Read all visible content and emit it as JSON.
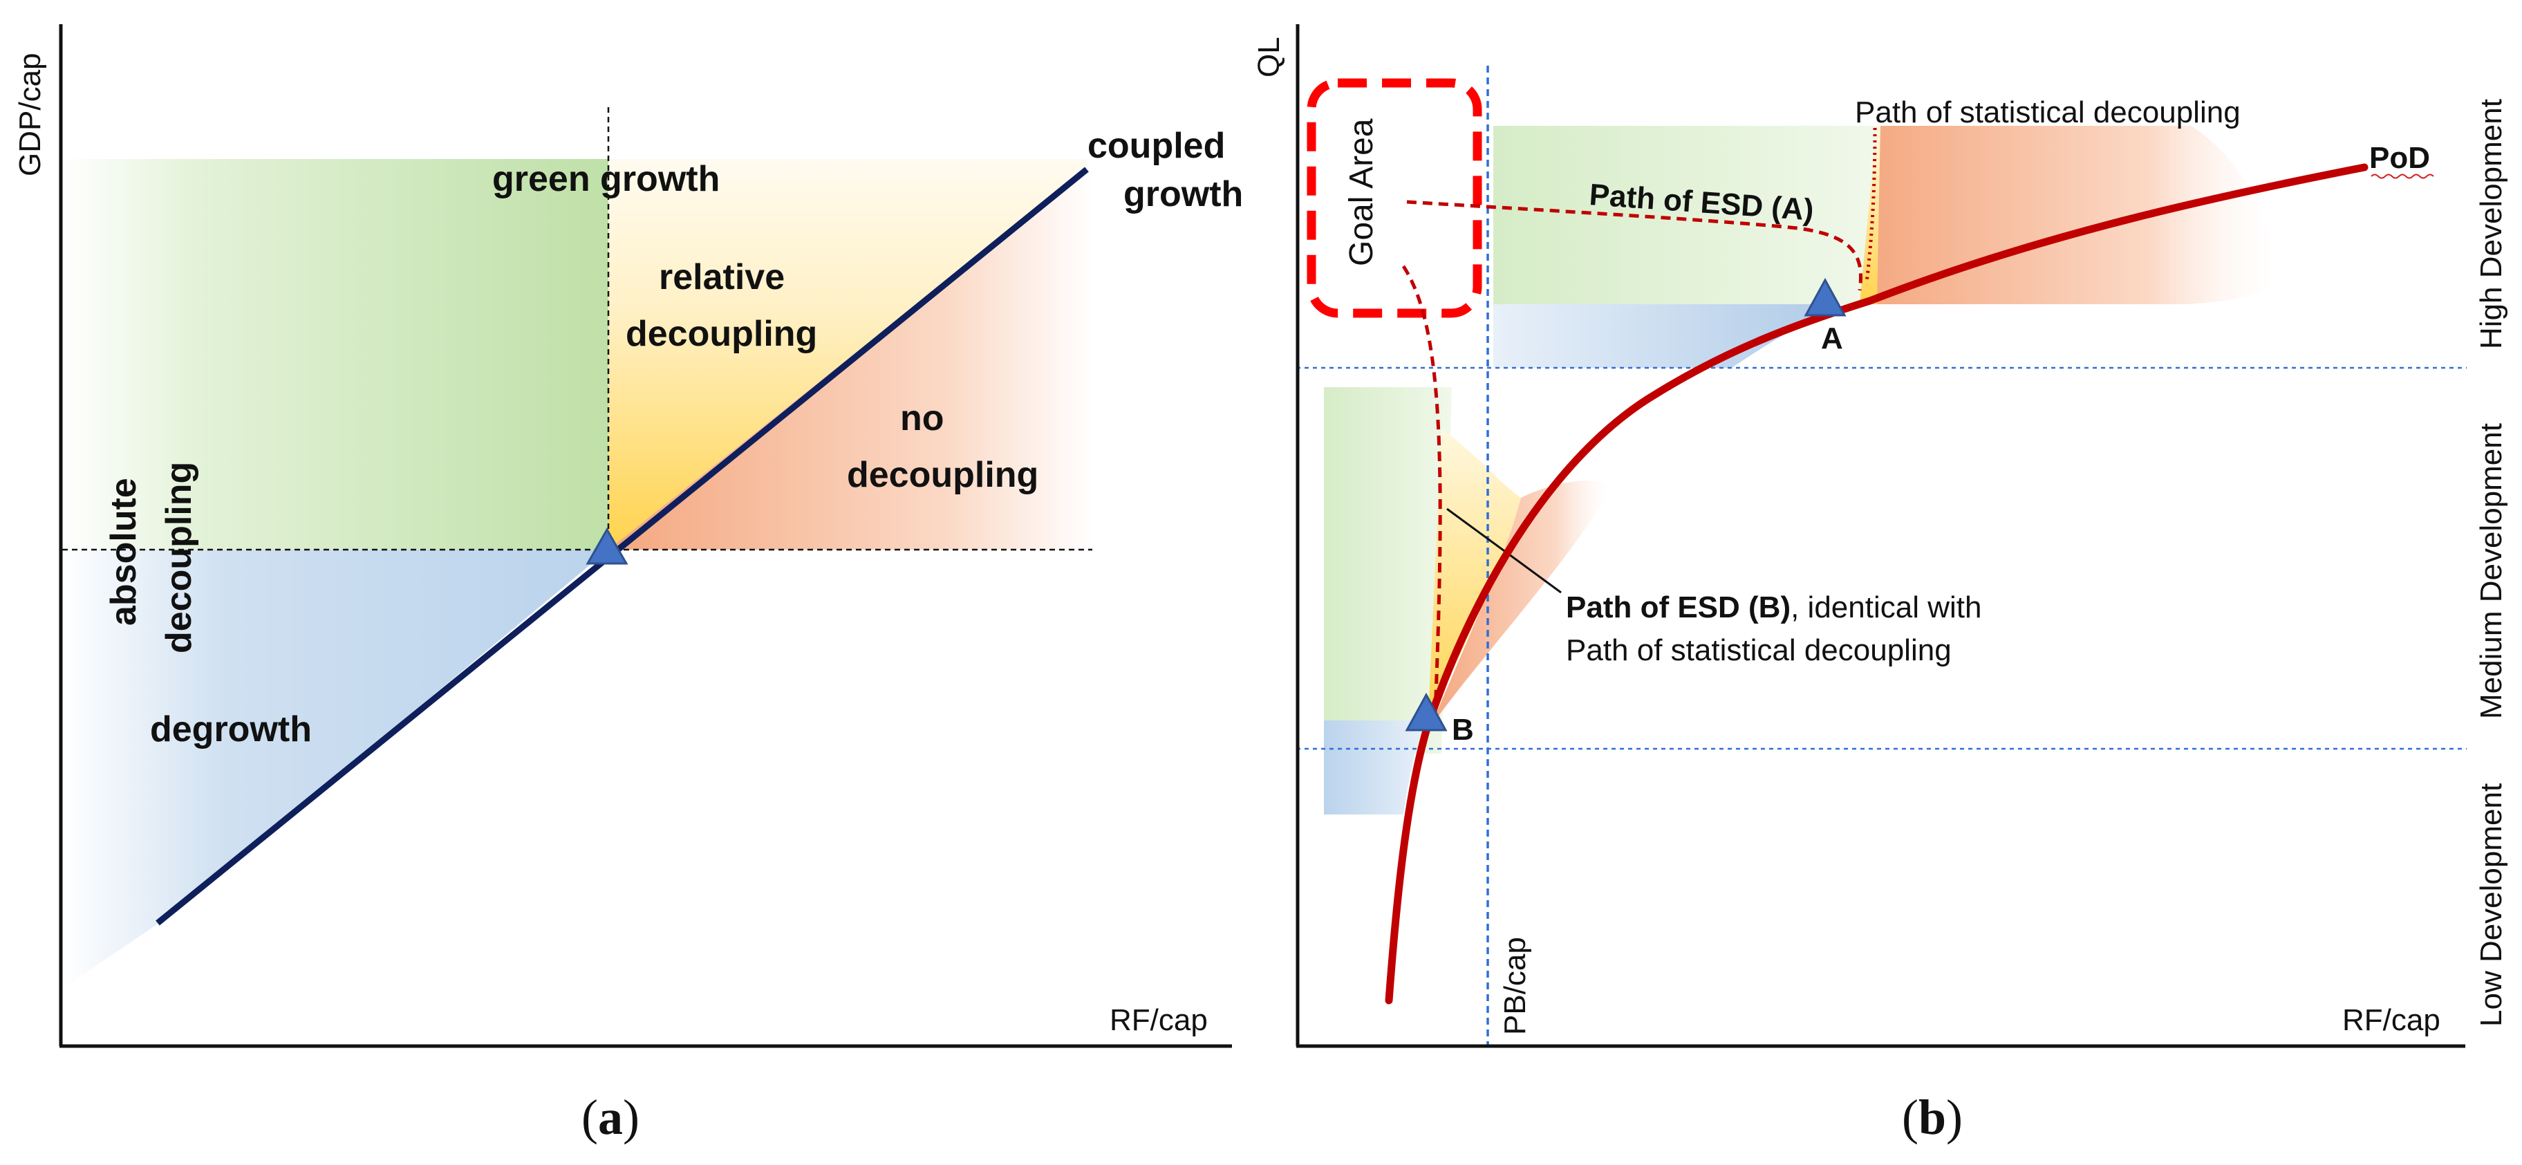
{
  "panel_a": {
    "caption": "a",
    "y_axis_label": "GDP/cap",
    "x_axis_label": "RF/cap",
    "regions": {
      "green_growth": "green growth",
      "coupled_growth_1": "coupled",
      "coupled_growth_2": "growth",
      "relative_decoupling_1": "relative",
      "relative_decoupling_2": "decoupling",
      "no_decoupling_1": "no",
      "no_decoupling_2": "decoupling",
      "absolute_decoupling_1": "absolute",
      "absolute_decoupling_2": "decoupling",
      "degrowth": "degrowth"
    }
  },
  "panel_b": {
    "caption": "b",
    "y_axis_label": "QL",
    "x_axis_label": "RF/cap",
    "pb_label": "PB/cap",
    "goal_area": "Goal Area",
    "pod_label": "PoD",
    "point_a": "A",
    "point_b": "B",
    "path_statistical": "Path of statistical decoupling",
    "path_esd_a": "Path of ESD (A)",
    "path_esd_b_bold": "Path of ESD (B)",
    "path_esd_b_rest": ", identical with",
    "path_esd_b_line2": "Path of statistical decoupling",
    "dev_levels": {
      "high": "High Development",
      "medium": "Medium Development",
      "low": "Low Development"
    }
  },
  "colors": {
    "axis": "#111111",
    "diagonal": "#0f1f5c",
    "pod_curve": "#c00000",
    "goal_box": "#ff0000",
    "triangle": "#4472c4",
    "guide_blue": "#2f6fd6"
  }
}
